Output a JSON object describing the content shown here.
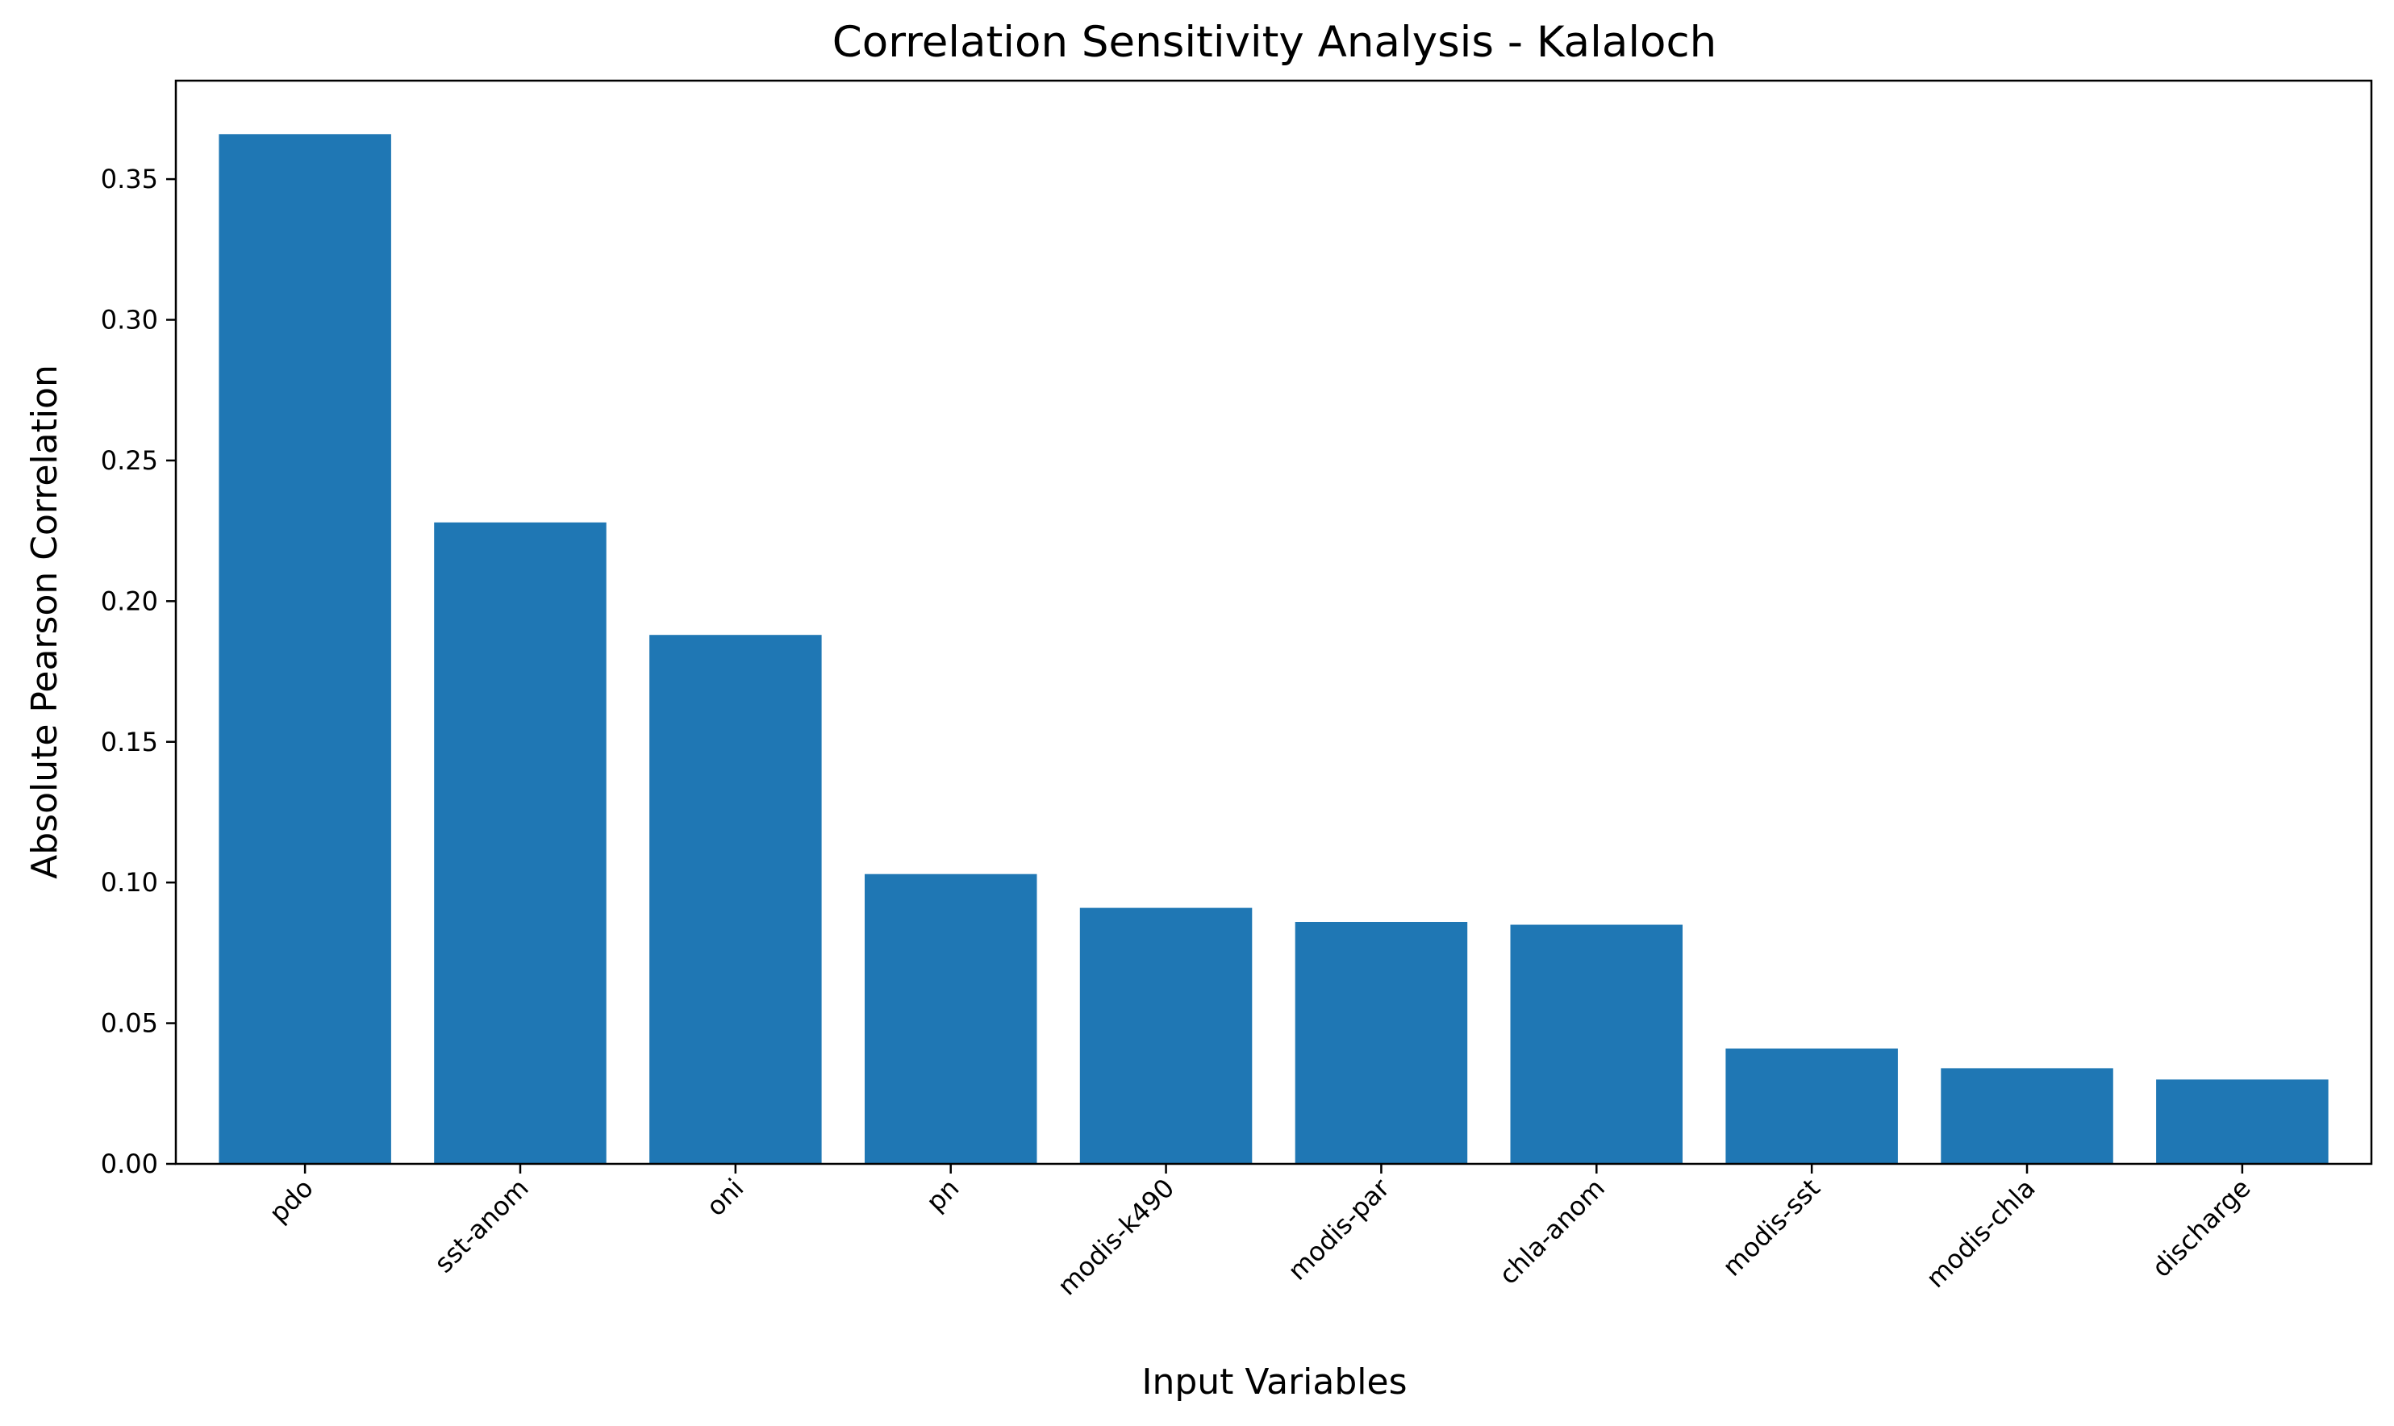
{
  "chart_data": {
    "type": "bar",
    "title": "Correlation Sensitivity Analysis - Kalaloch",
    "xlabel": "Input Variables",
    "ylabel": "Absolute Pearson Correlation",
    "categories": [
      "pdo",
      "sst-anom",
      "oni",
      "pn",
      "modis-k490",
      "modis-par",
      "chla-anom",
      "modis-sst",
      "modis-chla",
      "discharge"
    ],
    "values": [
      0.366,
      0.228,
      0.188,
      0.103,
      0.091,
      0.086,
      0.085,
      0.041,
      0.034,
      0.03
    ],
    "ylim": [
      0,
      0.385
    ],
    "yticks": [
      "0.00",
      "0.05",
      "0.10",
      "0.15",
      "0.20",
      "0.25",
      "0.30",
      "0.35"
    ],
    "bar_color": "#1f77b4",
    "grid": false,
    "legend": "none"
  }
}
